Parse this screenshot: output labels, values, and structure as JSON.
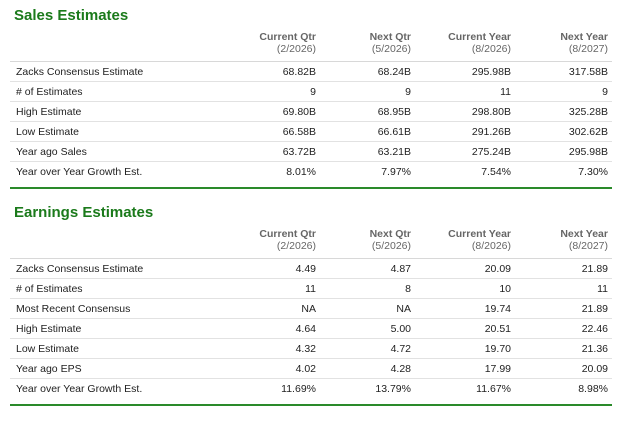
{
  "sales": {
    "title": "Sales Estimates",
    "headers": [
      {
        "title": "",
        "sub": ""
      },
      {
        "title": "Current Qtr",
        "sub": "(2/2026)"
      },
      {
        "title": "Next Qtr",
        "sub": "(5/2026)"
      },
      {
        "title": "Current Year",
        "sub": "(8/2026)"
      },
      {
        "title": "Next Year",
        "sub": "(8/2027)"
      }
    ],
    "rows": [
      [
        "Zacks Consensus Estimate",
        "68.82B",
        "68.24B",
        "295.98B",
        "317.58B"
      ],
      [
        "# of Estimates",
        "9",
        "9",
        "11",
        "9"
      ],
      [
        "High Estimate",
        "69.80B",
        "68.95B",
        "298.80B",
        "325.28B"
      ],
      [
        "Low Estimate",
        "66.58B",
        "66.61B",
        "291.26B",
        "302.62B"
      ],
      [
        "Year ago Sales",
        "63.72B",
        "63.21B",
        "275.24B",
        "295.98B"
      ],
      [
        "Year over Year Growth Est.",
        "8.01%",
        "7.97%",
        "7.54%",
        "7.30%"
      ]
    ]
  },
  "earnings": {
    "title": "Earnings Estimates",
    "headers": [
      {
        "title": "",
        "sub": ""
      },
      {
        "title": "Current Qtr",
        "sub": "(2/2026)"
      },
      {
        "title": "Next Qtr",
        "sub": "(5/2026)"
      },
      {
        "title": "Current Year",
        "sub": "(8/2026)"
      },
      {
        "title": "Next Year",
        "sub": "(8/2027)"
      }
    ],
    "rows": [
      [
        "Zacks Consensus Estimate",
        "4.49",
        "4.87",
        "20.09",
        "21.89"
      ],
      [
        "# of Estimates",
        "11",
        "8",
        "10",
        "11"
      ],
      [
        "Most Recent Consensus",
        "NA",
        "NA",
        "19.74",
        "21.89"
      ],
      [
        "High Estimate",
        "4.64",
        "5.00",
        "20.51",
        "22.46"
      ],
      [
        "Low Estimate",
        "4.32",
        "4.72",
        "19.70",
        "21.36"
      ],
      [
        "Year ago EPS",
        "4.02",
        "4.28",
        "17.99",
        "20.09"
      ],
      [
        "Year over Year Growth Est.",
        "11.69%",
        "13.79%",
        "11.67%",
        "8.98%"
      ]
    ]
  },
  "colors": {
    "title_green": "#1b7a1b",
    "rule_green": "#2a8a2a",
    "header_gray": "#666666"
  }
}
